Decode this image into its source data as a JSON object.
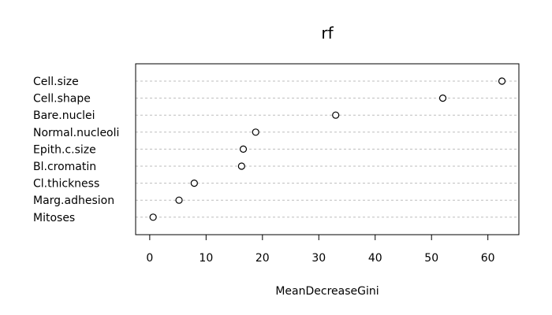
{
  "chart_data": {
    "type": "scatter",
    "title": "rf",
    "xlabel": "MeanDecreaseGini",
    "ylabel": "",
    "xlim": [
      -2.5,
      65.5
    ],
    "xticks": [
      0,
      10,
      20,
      30,
      40,
      50,
      60
    ],
    "grid": "dotted horizontal lines per category",
    "categories": [
      "Cell.size",
      "Cell.shape",
      "Bare.nuclei",
      "Normal.nucleoli",
      "Epith.c.size",
      "Bl.cromatin",
      "Cl.thickness",
      "Marg.adhesion",
      "Mitoses"
    ],
    "values": [
      62.5,
      52.0,
      33.0,
      18.8,
      16.6,
      16.3,
      7.9,
      5.2,
      0.6
    ],
    "marker": "open-circle",
    "colors": {
      "marker_stroke": "#000000",
      "grid": "#bdbdbd",
      "axes": "#000000"
    }
  }
}
